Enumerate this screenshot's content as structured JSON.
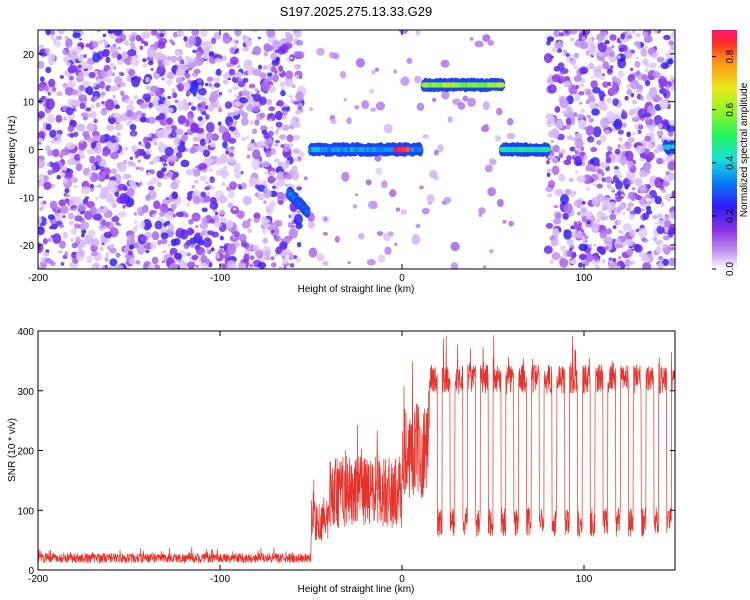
{
  "title": "S197.2025.275.13.33.G29",
  "chart_data": [
    {
      "type": "heatmap",
      "name": "spectrogram",
      "xlabel": "Height of straight line (km)",
      "ylabel": "Frequency (Hz)",
      "xlim": [
        -200,
        150
      ],
      "ylim": [
        -25,
        25
      ],
      "xticks": [
        -200,
        -100,
        0,
        100
      ],
      "xtick_labels": [
        "-200",
        "-100",
        "0",
        "100"
      ],
      "yticks": [
        -20,
        -10,
        0,
        10,
        20
      ],
      "ytick_labels": [
        "-20",
        "-10",
        "0",
        "10",
        "20"
      ],
      "colorbar": {
        "label": "Normalized spectral amplitude",
        "range": [
          0,
          0.9
        ],
        "ticks": [
          0.0,
          0.2,
          0.4,
          0.6,
          0.8
        ],
        "tick_labels": [
          "0.0",
          "0.2",
          "0.4",
          "0.6",
          "0.8"
        ]
      },
      "noise_regions": [
        {
          "x": [
            -200,
            -55
          ],
          "density": "high"
        },
        {
          "x": [
            -55,
            10
          ],
          "density": "sparse"
        },
        {
          "x": [
            10,
            60
          ],
          "density": "sparse"
        },
        {
          "x": [
            80,
            150
          ],
          "density": "high"
        }
      ],
      "tracks": [
        {
          "x": [
            -62,
            -52
          ],
          "freq": [
            -9,
            -13
          ],
          "amplitude": 0.3
        },
        {
          "x": [
            -50,
            10
          ],
          "freq": [
            0,
            0
          ],
          "amplitude": 0.35
        },
        {
          "x": [
            -3,
            3
          ],
          "freq": [
            0,
            0
          ],
          "amplitude": 0.95
        },
        {
          "x": [
            12,
            55
          ],
          "freq": [
            13.5,
            13.5
          ],
          "amplitude": 0.6
        },
        {
          "x": [
            55,
            80
          ],
          "freq": [
            0,
            0
          ],
          "amplitude": 0.45
        },
        {
          "x": [
            145,
            150
          ],
          "freq": [
            0.5,
            0.5
          ],
          "amplitude": 0.4
        }
      ]
    },
    {
      "type": "line",
      "name": "snr",
      "xlabel": "Height of straight line (km)",
      "ylabel": "SNR (10 * v/v)",
      "xlim": [
        -200,
        150
      ],
      "ylim": [
        0,
        400
      ],
      "xticks": [
        -200,
        -100,
        0,
        100
      ],
      "xtick_labels": [
        "-200",
        "-100",
        "0",
        "100"
      ],
      "yticks": [
        0,
        100,
        200,
        300,
        400
      ],
      "ytick_labels": [
        "0",
        "100",
        "200",
        "300",
        "400"
      ],
      "color": "#e8312a",
      "segments": [
        {
          "x": [
            -200,
            -50
          ],
          "mean": 20,
          "spread": 8
        },
        {
          "x": [
            -50,
            -40
          ],
          "mean": 80,
          "spread": 40
        },
        {
          "x": [
            -40,
            0
          ],
          "mean": 130,
          "spread": 60
        },
        {
          "x": [
            0,
            15
          ],
          "mean": 200,
          "spread": 80
        },
        {
          "x": [
            15,
            150
          ],
          "high_mean": 320,
          "low_mean": 80,
          "spread": 25
        }
      ]
    }
  ]
}
